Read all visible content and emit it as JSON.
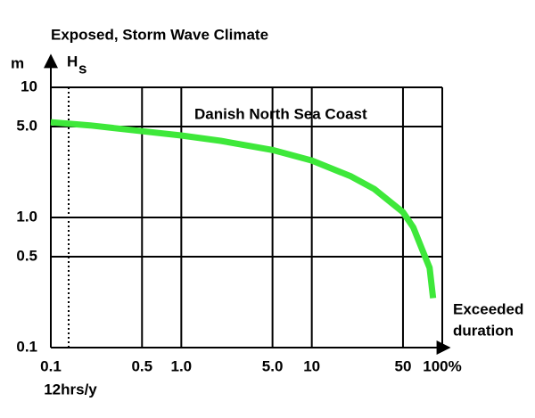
{
  "chart_data": {
    "type": "line",
    "title": "Exposed, Storm Wave Climate",
    "y_unit": "m",
    "y_label": "H",
    "y_label_sub": "s",
    "x_label": [
      "Exceeded",
      "duration"
    ],
    "annotations": [
      {
        "text": "Danish North Sea Coast"
      },
      {
        "text": "12hrs/y",
        "x": 0.137
      }
    ],
    "x_scale": "log",
    "y_scale": "log",
    "grid": true,
    "xlim": [
      0.1,
      100
    ],
    "ylim": [
      0.1,
      10
    ],
    "xticks": [
      0.1,
      0.5,
      {
        "value": 1,
        "label": "1.0"
      },
      {
        "value": 5,
        "label": "5.0"
      },
      10,
      50,
      {
        "value": 100,
        "label": "100%"
      }
    ],
    "yticks": [
      0.1,
      0.5,
      {
        "value": 1,
        "label": "1.0"
      },
      {
        "value": 5,
        "label": "5.0"
      },
      10
    ],
    "x": [
      0.1,
      0.2,
      0.5,
      1,
      2,
      5,
      10,
      20,
      30,
      50,
      60,
      70,
      80,
      85
    ],
    "series": [
      {
        "color": "#3ee83a",
        "values": [
          5.4,
          5.1,
          4.6,
          4.27,
          3.88,
          3.3,
          2.74,
          2.07,
          1.66,
          1.1,
          0.84,
          0.57,
          0.41,
          0.24
        ]
      }
    ]
  }
}
